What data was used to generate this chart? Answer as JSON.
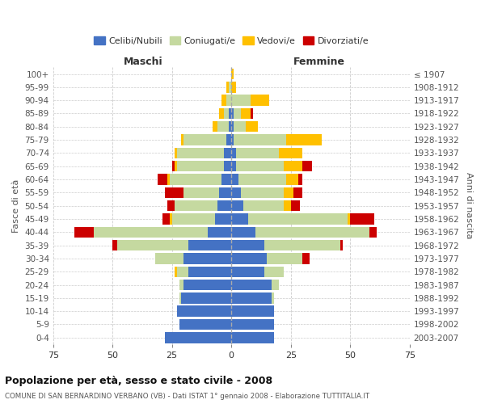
{
  "age_groups": [
    "0-4",
    "5-9",
    "10-14",
    "15-19",
    "20-24",
    "25-29",
    "30-34",
    "35-39",
    "40-44",
    "45-49",
    "50-54",
    "55-59",
    "60-64",
    "65-69",
    "70-74",
    "75-79",
    "80-84",
    "85-89",
    "90-94",
    "95-99",
    "100+"
  ],
  "birth_years": [
    "2003-2007",
    "1998-2002",
    "1993-1997",
    "1988-1992",
    "1983-1987",
    "1978-1982",
    "1973-1977",
    "1968-1972",
    "1963-1967",
    "1958-1962",
    "1953-1957",
    "1948-1952",
    "1943-1947",
    "1938-1942",
    "1933-1937",
    "1928-1932",
    "1923-1927",
    "1918-1922",
    "1913-1917",
    "1908-1912",
    "≤ 1907"
  ],
  "colors": {
    "celibi": "#4472c4",
    "coniugati": "#c5d9a0",
    "vedovi": "#ffc000",
    "divorziati": "#cc0000"
  },
  "maschi": {
    "celibi": [
      28,
      22,
      23,
      21,
      20,
      18,
      20,
      18,
      10,
      7,
      6,
      5,
      4,
      3,
      3,
      2,
      1,
      1,
      0,
      0,
      0
    ],
    "coniugati": [
      0,
      0,
      0,
      1,
      2,
      5,
      12,
      30,
      48,
      18,
      18,
      15,
      22,
      20,
      20,
      18,
      5,
      2,
      2,
      1,
      0
    ],
    "vedovi": [
      0,
      0,
      0,
      0,
      0,
      1,
      0,
      0,
      0,
      1,
      0,
      0,
      1,
      1,
      1,
      1,
      2,
      2,
      2,
      1,
      0
    ],
    "divorziati": [
      0,
      0,
      0,
      0,
      0,
      0,
      0,
      2,
      8,
      3,
      3,
      8,
      4,
      1,
      0,
      0,
      0,
      0,
      0,
      0,
      0
    ]
  },
  "femmine": {
    "celibi": [
      18,
      18,
      18,
      17,
      17,
      14,
      15,
      14,
      10,
      7,
      5,
      4,
      3,
      2,
      2,
      1,
      1,
      1,
      0,
      0,
      0
    ],
    "coniugati": [
      0,
      0,
      0,
      1,
      3,
      8,
      15,
      32,
      48,
      42,
      17,
      18,
      20,
      20,
      18,
      22,
      5,
      3,
      8,
      0,
      0
    ],
    "vedovi": [
      0,
      0,
      0,
      0,
      0,
      0,
      0,
      0,
      0,
      1,
      3,
      4,
      5,
      8,
      10,
      15,
      5,
      4,
      8,
      2,
      1
    ],
    "divorziati": [
      0,
      0,
      0,
      0,
      0,
      0,
      3,
      1,
      3,
      10,
      4,
      4,
      2,
      4,
      0,
      0,
      0,
      1,
      0,
      0,
      0
    ]
  },
  "xlim": 75,
  "title": "Popolazione per età, sesso e stato civile - 2008",
  "subtitle": "COMUNE DI SAN BERNARDINO VERBANO (VB) - Dati ISTAT 1° gennaio 2008 - Elaborazione TUTTITALIA.IT",
  "ylabel_left": "Fasce di età",
  "ylabel_right": "Anni di nascita",
  "bg_color": "#ffffff",
  "grid_color": "#cccccc"
}
